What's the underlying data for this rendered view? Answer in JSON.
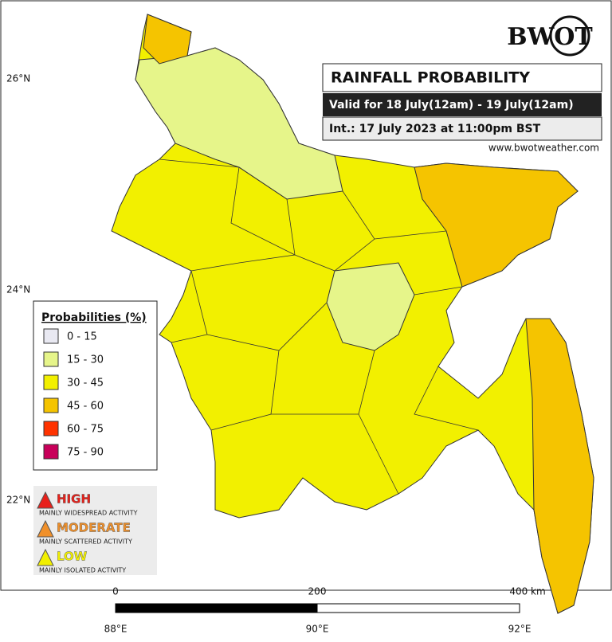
{
  "logo": "BWOT",
  "title": "RAINFALL PROBABILITY",
  "validity": "Valid for 18 July(12am) - 19 July(12am)",
  "issued": "Int.: 17 July 2023 at 11:00pm BST",
  "website": "www.bwotweather.com",
  "latitude_labels": [
    "26°N",
    "24°N",
    "22°N"
  ],
  "longitude_labels": [
    "88°E",
    "90°E",
    "92°E"
  ],
  "scale_labels": [
    "0",
    "200",
    "400 km"
  ],
  "legend": {
    "title": "Probabilities (%)",
    "items": [
      {
        "label": "0 - 15",
        "color": "#e9e9f2"
      },
      {
        "label": "15 - 30",
        "color": "#e6f58a"
      },
      {
        "label": "30 - 45",
        "color": "#f2f000"
      },
      {
        "label": "45 - 60",
        "color": "#f5c400"
      },
      {
        "label": "60 - 75",
        "color": "#ff3300"
      },
      {
        "label": "75 - 90",
        "color": "#c8005a"
      }
    ]
  },
  "risk_levels": [
    {
      "level": "HIGH",
      "description": "MAINLY WIDESPREAD ACTIVITY",
      "color": "#e8201a"
    },
    {
      "level": "MODERATE",
      "description": "MAINLY SCATTERED ACTIVITY",
      "color": "#f0902a"
    },
    {
      "level": "LOW",
      "description": "MAINLY ISOLATED ACTIVITY",
      "color": "#f2f000"
    }
  ]
}
